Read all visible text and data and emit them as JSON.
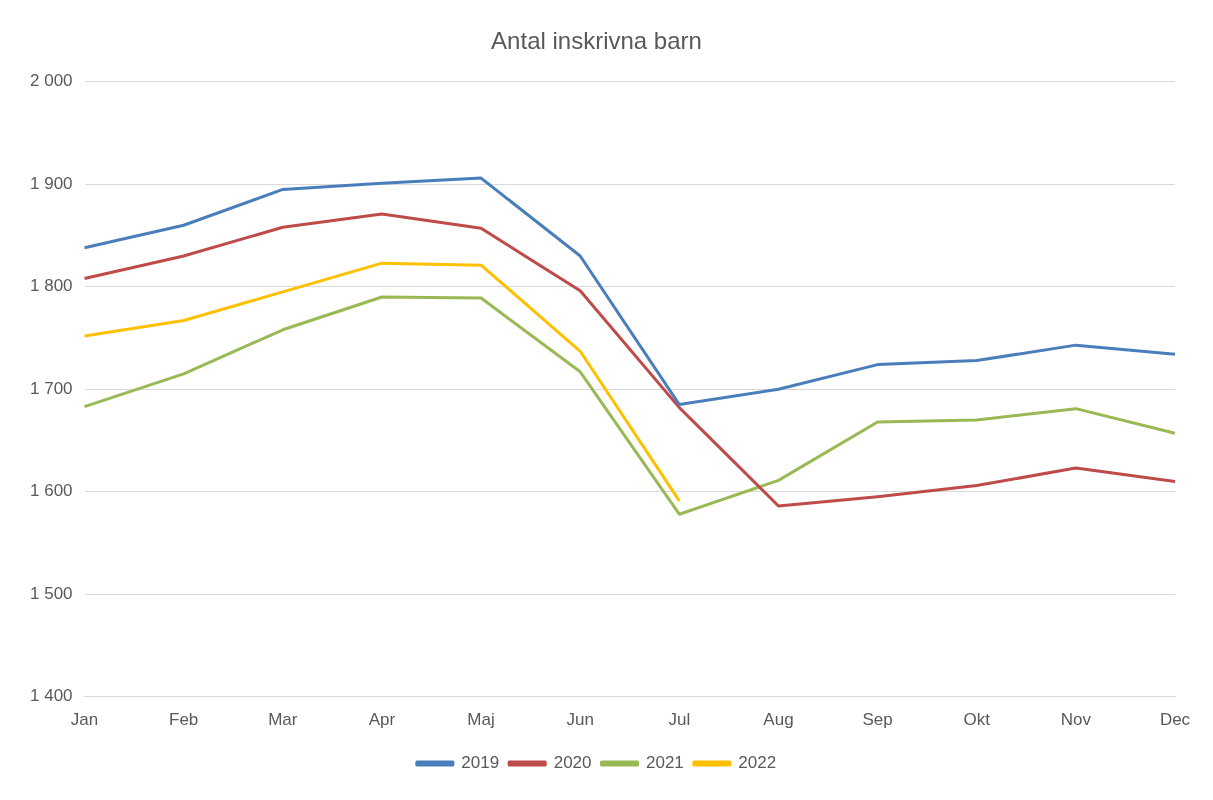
{
  "chart_data": {
    "type": "line",
    "title": "Antal inskrivna barn",
    "categories": [
      "Jan",
      "Feb",
      "Mar",
      "Apr",
      "Maj",
      "Jun",
      "Jul",
      "Aug",
      "Sep",
      "Okt",
      "Nov",
      "Dec"
    ],
    "series": [
      {
        "name": "2019",
        "color": "#4a7ebb",
        "values": [
          1838,
          1860,
          1895,
          1901,
          1906,
          1830,
          1685,
          1700,
          1724,
          1728,
          1743,
          1734
        ]
      },
      {
        "name": "2020",
        "color": "#be4b48",
        "values": [
          1808,
          1830,
          1858,
          1871,
          1857,
          1796,
          1682,
          1586,
          1595,
          1606,
          1623,
          1610
        ]
      },
      {
        "name": "2021",
        "color": "#98b954",
        "values": [
          1683,
          1715,
          1758,
          1790,
          1789,
          1717,
          1578,
          1611,
          1668,
          1670,
          1681,
          1657
        ]
      },
      {
        "name": "2022",
        "color": "#ffc000",
        "values": [
          1752,
          1767,
          1795,
          1823,
          1821,
          1737,
          1591,
          null,
          null,
          null,
          null,
          null
        ]
      }
    ],
    "ylim": [
      1400,
      2000
    ],
    "yticks": [
      {
        "value": 1400,
        "label": "1 400"
      },
      {
        "value": 1500,
        "label": "1 500"
      },
      {
        "value": 1600,
        "label": "1 600"
      },
      {
        "value": 1700,
        "label": "1 700"
      },
      {
        "value": 1800,
        "label": "1 800"
      },
      {
        "value": 1900,
        "label": "1 900"
      },
      {
        "value": 2000,
        "label": "2 000"
      }
    ],
    "grid": "y",
    "legend": "bottom",
    "marker": "none",
    "line_style": "solid"
  }
}
